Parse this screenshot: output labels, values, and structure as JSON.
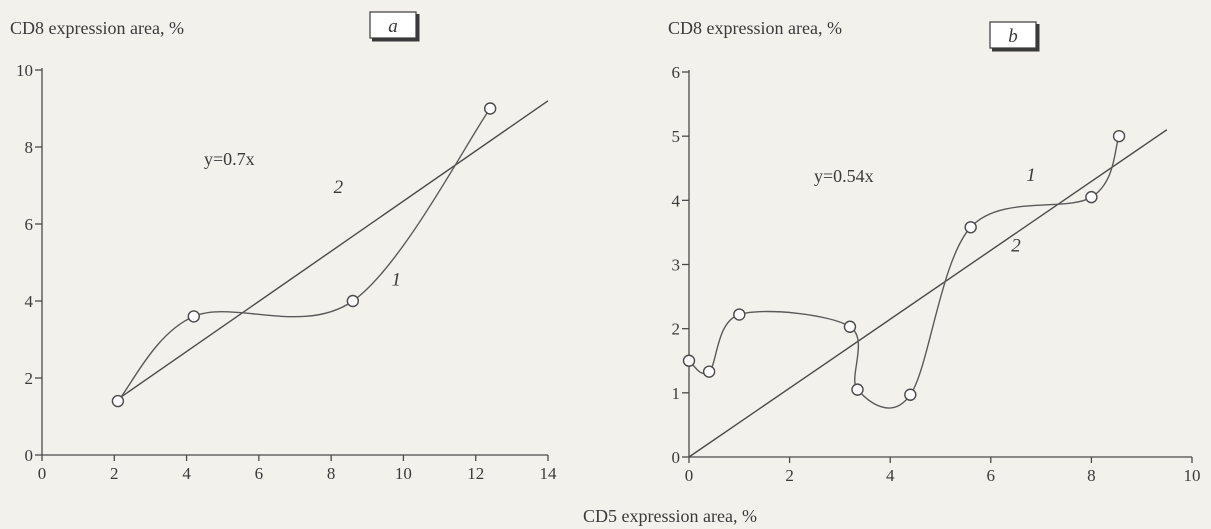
{
  "shared_xlabel": "CD5 expression area, %",
  "chart_data": [
    {
      "id": "a",
      "type": "line",
      "panel_label": "a",
      "ylabel": "CD8 expression area, %",
      "xlim": [
        0,
        14
      ],
      "ylim": [
        0,
        10
      ],
      "xticks": [
        0,
        2,
        4,
        6,
        8,
        10,
        12,
        14
      ],
      "yticks": [
        0,
        2,
        4,
        6,
        8,
        10
      ],
      "series": [
        {
          "name": "1",
          "points": [
            [
              2.1,
              1.4
            ],
            [
              4.2,
              3.6
            ],
            [
              8.6,
              4.0
            ],
            [
              12.4,
              9.0
            ]
          ]
        }
      ],
      "fit": {
        "name": "2",
        "equation": "y=0.7x",
        "x": [
          2.1,
          14.0
        ],
        "y": [
          1.45,
          9.2
        ]
      },
      "annotations": [
        {
          "text": "2",
          "x": 8.2,
          "y": 6.8
        },
        {
          "text": "1",
          "x": 9.8,
          "y": 4.4
        }
      ]
    },
    {
      "id": "b",
      "type": "line",
      "panel_label": "b",
      "ylabel": "CD8 expression area, %",
      "xlim": [
        0,
        10
      ],
      "ylim": [
        0,
        6
      ],
      "xticks": [
        0,
        2,
        4,
        6,
        8,
        10
      ],
      "yticks": [
        0,
        1,
        2,
        3,
        4,
        5,
        6
      ],
      "series": [
        {
          "name": "1",
          "points": [
            [
              0.0,
              1.5
            ],
            [
              0.4,
              1.33
            ],
            [
              1.0,
              2.22
            ],
            [
              3.2,
              2.03
            ],
            [
              3.35,
              1.05
            ],
            [
              4.4,
              0.97
            ],
            [
              5.6,
              3.58
            ],
            [
              8.0,
              4.05
            ],
            [
              8.55,
              5.0
            ]
          ]
        }
      ],
      "fit": {
        "name": "2",
        "equation": "y=0.54x",
        "x": [
          0.0,
          9.5
        ],
        "y": [
          0.0,
          5.1
        ]
      },
      "annotations": [
        {
          "text": "1",
          "x": 6.8,
          "y": 4.3
        },
        {
          "text": "2",
          "x": 6.5,
          "y": 3.2
        }
      ]
    }
  ]
}
